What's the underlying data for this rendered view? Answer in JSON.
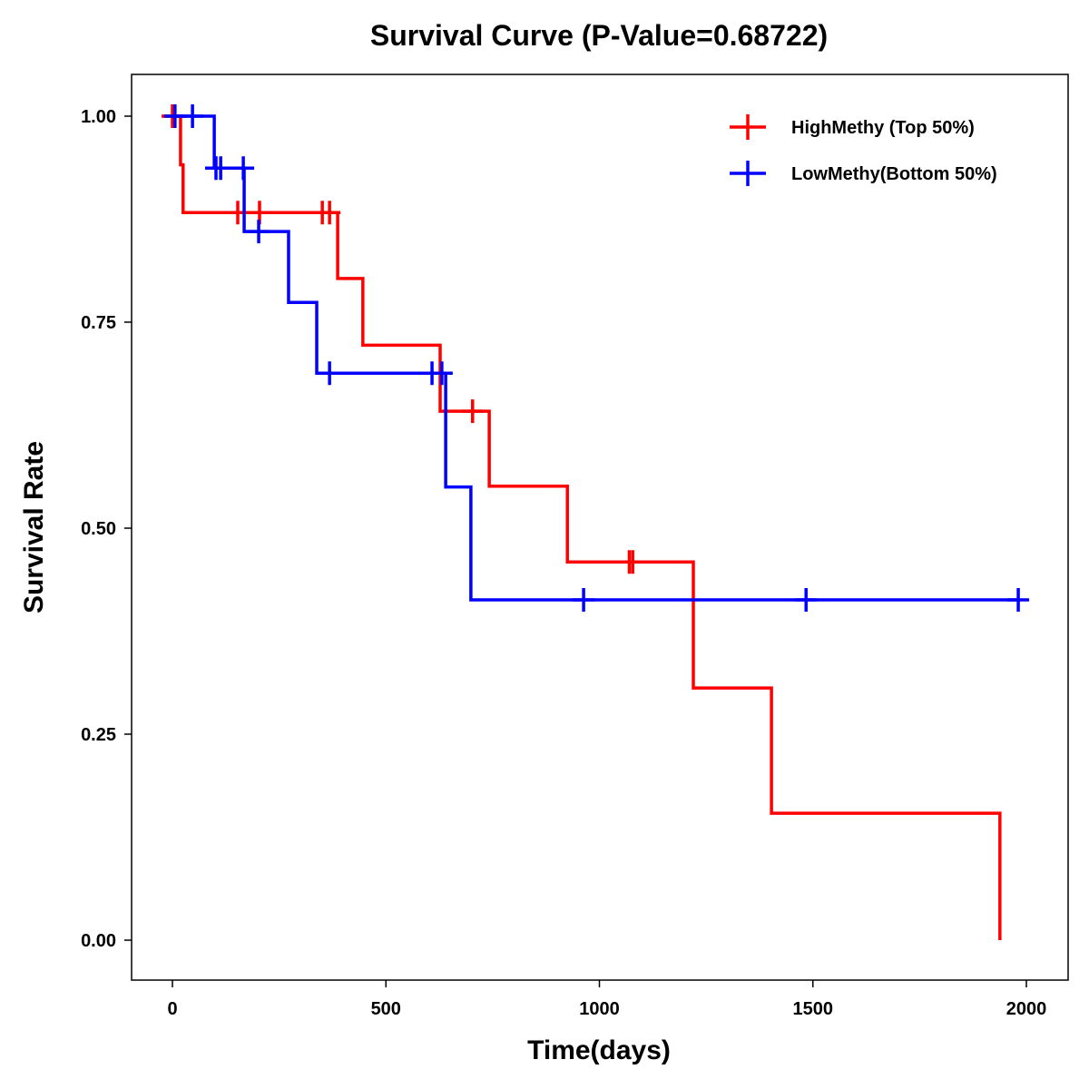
{
  "chart_data": {
    "type": "line",
    "subtype": "kaplan-meier step",
    "title": "Survival Curve (P-Value=0.68722)",
    "xlabel": "Time(days)",
    "ylabel": "Survival Rate",
    "xlim": [
      -95,
      2070
    ],
    "ylim": [
      -0.048,
      1.05
    ],
    "xticks": [
      0,
      500,
      1000,
      1500,
      2000
    ],
    "xtick_labels": [
      "0",
      "500",
      "1000",
      "1500",
      "2000"
    ],
    "yticks": [
      0,
      0.25,
      0.5,
      0.75,
      1.0
    ],
    "ytick_labels": [
      "0.00",
      "0.25",
      "0.50",
      "0.75",
      "1.00"
    ],
    "grid": false,
    "legend_position": "top-right",
    "series": [
      {
        "name": "HighMethy (Top 50%)",
        "color": "#ff0000",
        "steps": [
          [
            0,
            1.0
          ],
          [
            19,
            0.941
          ],
          [
            25,
            0.883
          ],
          [
            387,
            0.803
          ],
          [
            446,
            0.722
          ],
          [
            627,
            0.642
          ],
          [
            742,
            0.551
          ],
          [
            925,
            0.459
          ],
          [
            1220,
            0.306
          ],
          [
            1403,
            0.154
          ],
          [
            1938,
            0.0
          ]
        ],
        "end_time": 1938,
        "censored": [
          [
            0,
            1.0
          ],
          [
            5,
            1.0
          ],
          [
            153,
            0.883
          ],
          [
            204,
            0.883
          ],
          [
            351,
            0.883
          ],
          [
            368,
            0.883
          ],
          [
            703,
            0.642
          ],
          [
            1070,
            0.459
          ],
          [
            1078,
            0.459
          ]
        ]
      },
      {
        "name": "LowMethy(Bottom 50%)",
        "color": "#0000ff",
        "steps": [
          [
            0,
            1.0
          ],
          [
            98,
            0.937
          ],
          [
            168,
            0.86
          ],
          [
            272,
            0.774
          ],
          [
            338,
            0.688
          ],
          [
            640,
            0.55
          ],
          [
            699,
            0.413
          ]
        ],
        "end_time": 1981,
        "censored": [
          [
            6,
            1.0
          ],
          [
            47,
            1.0
          ],
          [
            102,
            0.937
          ],
          [
            113,
            0.937
          ],
          [
            166,
            0.937
          ],
          [
            202,
            0.86
          ],
          [
            368,
            0.688
          ],
          [
            608,
            0.688
          ],
          [
            631,
            0.688
          ],
          [
            963,
            0.413
          ],
          [
            1484,
            0.413
          ],
          [
            1981,
            0.413
          ]
        ]
      }
    ]
  }
}
